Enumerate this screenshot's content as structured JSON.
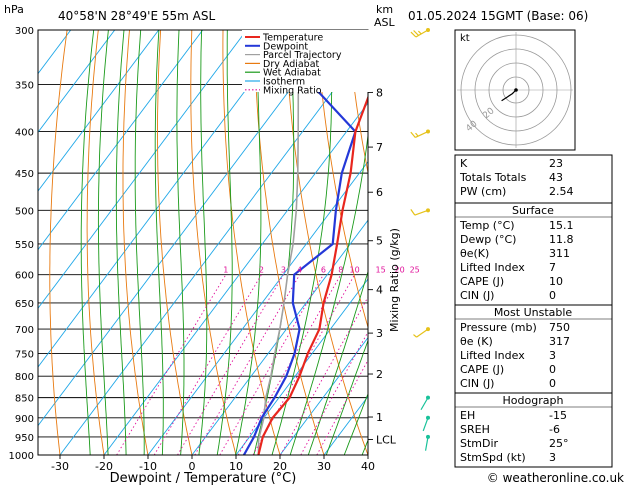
{
  "header": {
    "pressure_unit": "hPa",
    "location": "40°58'N  28°49'E  55m  ASL",
    "height_unit_km": "km",
    "height_unit_asl": "ASL",
    "datetime": "01.05.2024  15GMT  (Base: 06)"
  },
  "footer": {
    "credit": "© weatheronline.co.uk"
  },
  "chart_data": {
    "type": "line",
    "title": "",
    "xlabel": "Dewpoint / Temperature (°C)",
    "ylabel": "hPa",
    "right_axis_label": "Mixing Ratio (g/kg)",
    "xlim": [
      -35,
      40
    ],
    "ylim": [
      1000,
      300
    ],
    "y_scale": "log",
    "x_ticks": [
      -30,
      -20,
      -10,
      0,
      10,
      20,
      30,
      40
    ],
    "pressure_levels": [
      300,
      350,
      400,
      450,
      500,
      550,
      600,
      650,
      700,
      750,
      800,
      850,
      900,
      950,
      1000
    ],
    "height_ticks": [
      {
        "label": "8",
        "p": 358
      },
      {
        "label": "7",
        "p": 418
      },
      {
        "label": "6",
        "p": 475
      },
      {
        "label": "5",
        "p": 545
      },
      {
        "label": "4",
        "p": 626
      },
      {
        "label": "3",
        "p": 708
      },
      {
        "label": "2",
        "p": 795
      },
      {
        "label": "1",
        "p": 898
      },
      {
        "label": "LCL",
        "p": 957
      }
    ],
    "mixing_ratio_labels": [
      "1",
      "2",
      "3",
      "4",
      "6",
      "8",
      "10",
      "15",
      "20",
      "25"
    ],
    "mixing_ratio_values": [
      1,
      2,
      3,
      4,
      6,
      8,
      10,
      15,
      20,
      25
    ],
    "legend": [
      "Temperature",
      "Dewpoint",
      "Parcel Trajectory",
      "Dry Adiabat",
      "Wet Adiabat",
      "Isotherm",
      "Mixing Ratio"
    ],
    "legend_placement": "top-center",
    "colors": {
      "temperature": "#e8261e",
      "dewpoint": "#2438d8",
      "parcel": "#a0a0a0",
      "dry_adiabat": "#e87a10",
      "wet_adiabat": "#1a9a1a",
      "isotherm": "#20a8e8",
      "mixing_ratio": "#e0109a"
    },
    "series": [
      {
        "name": "Temperature",
        "points": [
          [
            15.1,
            1000
          ],
          [
            13,
            950
          ],
          [
            12,
            900
          ],
          [
            12.4,
            850
          ],
          [
            11,
            800
          ],
          [
            9,
            750
          ],
          [
            7.5,
            700
          ],
          [
            4,
            650
          ],
          [
            1,
            600
          ],
          [
            -3,
            550
          ],
          [
            -7.5,
            500
          ],
          [
            -12,
            450
          ],
          [
            -18,
            400
          ],
          [
            -22,
            350
          ],
          [
            -27,
            300
          ]
        ]
      },
      {
        "name": "Dewpoint",
        "points": [
          [
            11.8,
            1000
          ],
          [
            11,
            950
          ],
          [
            9.5,
            900
          ],
          [
            9,
            850
          ],
          [
            8,
            800
          ],
          [
            6,
            750
          ],
          [
            3,
            700
          ],
          [
            -3,
            650
          ],
          [
            -7.5,
            600
          ],
          [
            -4,
            550
          ],
          [
            -9,
            500
          ],
          [
            -14,
            450
          ],
          [
            -18,
            400
          ],
          [
            -36,
            350
          ],
          [
            -41,
            300
          ]
        ]
      },
      {
        "name": "Parcel Trajectory",
        "points": [
          [
            15.1,
            1000
          ],
          [
            12.5,
            957
          ],
          [
            10,
            900
          ],
          [
            7,
            850
          ],
          [
            4.5,
            800
          ],
          [
            1.5,
            750
          ],
          [
            -1.5,
            700
          ],
          [
            -5,
            650
          ],
          [
            -9,
            600
          ],
          [
            -13,
            550
          ],
          [
            -18,
            500
          ],
          [
            -24,
            450
          ],
          [
            -31,
            400
          ],
          [
            -39,
            350
          ],
          [
            -49,
            300
          ]
        ]
      }
    ],
    "wind_barbs": [
      {
        "p": 300,
        "dir": 240,
        "kt": 25
      },
      {
        "p": 400,
        "dir": 245,
        "kt": 15
      },
      {
        "p": 500,
        "dir": 250,
        "kt": 10
      },
      {
        "p": 700,
        "dir": 235,
        "kt": 5
      },
      {
        "p": 850,
        "dir": 210,
        "kt": 3
      },
      {
        "p": 900,
        "dir": 200,
        "kt": 3
      },
      {
        "p": 950,
        "dir": 190,
        "kt": 3
      }
    ],
    "hodograph": {
      "unit_label": "kt",
      "ring_labels": [
        "40",
        "20"
      ],
      "points": [
        [
          0,
          0
        ],
        [
          -2,
          -2
        ],
        [
          -5,
          -4
        ],
        [
          -8,
          -6
        ]
      ]
    }
  },
  "indices": [
    {
      "label": "K",
      "value": "23"
    },
    {
      "label": "Totals Totals",
      "value": "43"
    },
    {
      "label": "PW (cm)",
      "value": "2.54"
    }
  ],
  "surface": {
    "title": "Surface",
    "rows": [
      {
        "label": "Temp (°C)",
        "value": "15.1"
      },
      {
        "label": "Dewp (°C)",
        "value": "11.8"
      },
      {
        "label": "θe(K)",
        "value": "311"
      },
      {
        "label": "Lifted Index",
        "value": "7"
      },
      {
        "label": "CAPE (J)",
        "value": "10"
      },
      {
        "label": "CIN (J)",
        "value": "0"
      }
    ]
  },
  "most_unstable": {
    "title": "Most Unstable",
    "rows": [
      {
        "label": "Pressure (mb)",
        "value": "750"
      },
      {
        "label": "θe (K)",
        "value": "317"
      },
      {
        "label": "Lifted Index",
        "value": "3"
      },
      {
        "label": "CAPE (J)",
        "value": "0"
      },
      {
        "label": "CIN (J)",
        "value": "0"
      }
    ]
  },
  "hodograph_table": {
    "title": "Hodograph",
    "rows": [
      {
        "label": "EH",
        "value": "-15"
      },
      {
        "label": "SREH",
        "value": "-6"
      },
      {
        "label": "StmDir",
        "value": "25°"
      },
      {
        "label": "StmSpd (kt)",
        "value": "3"
      }
    ]
  }
}
